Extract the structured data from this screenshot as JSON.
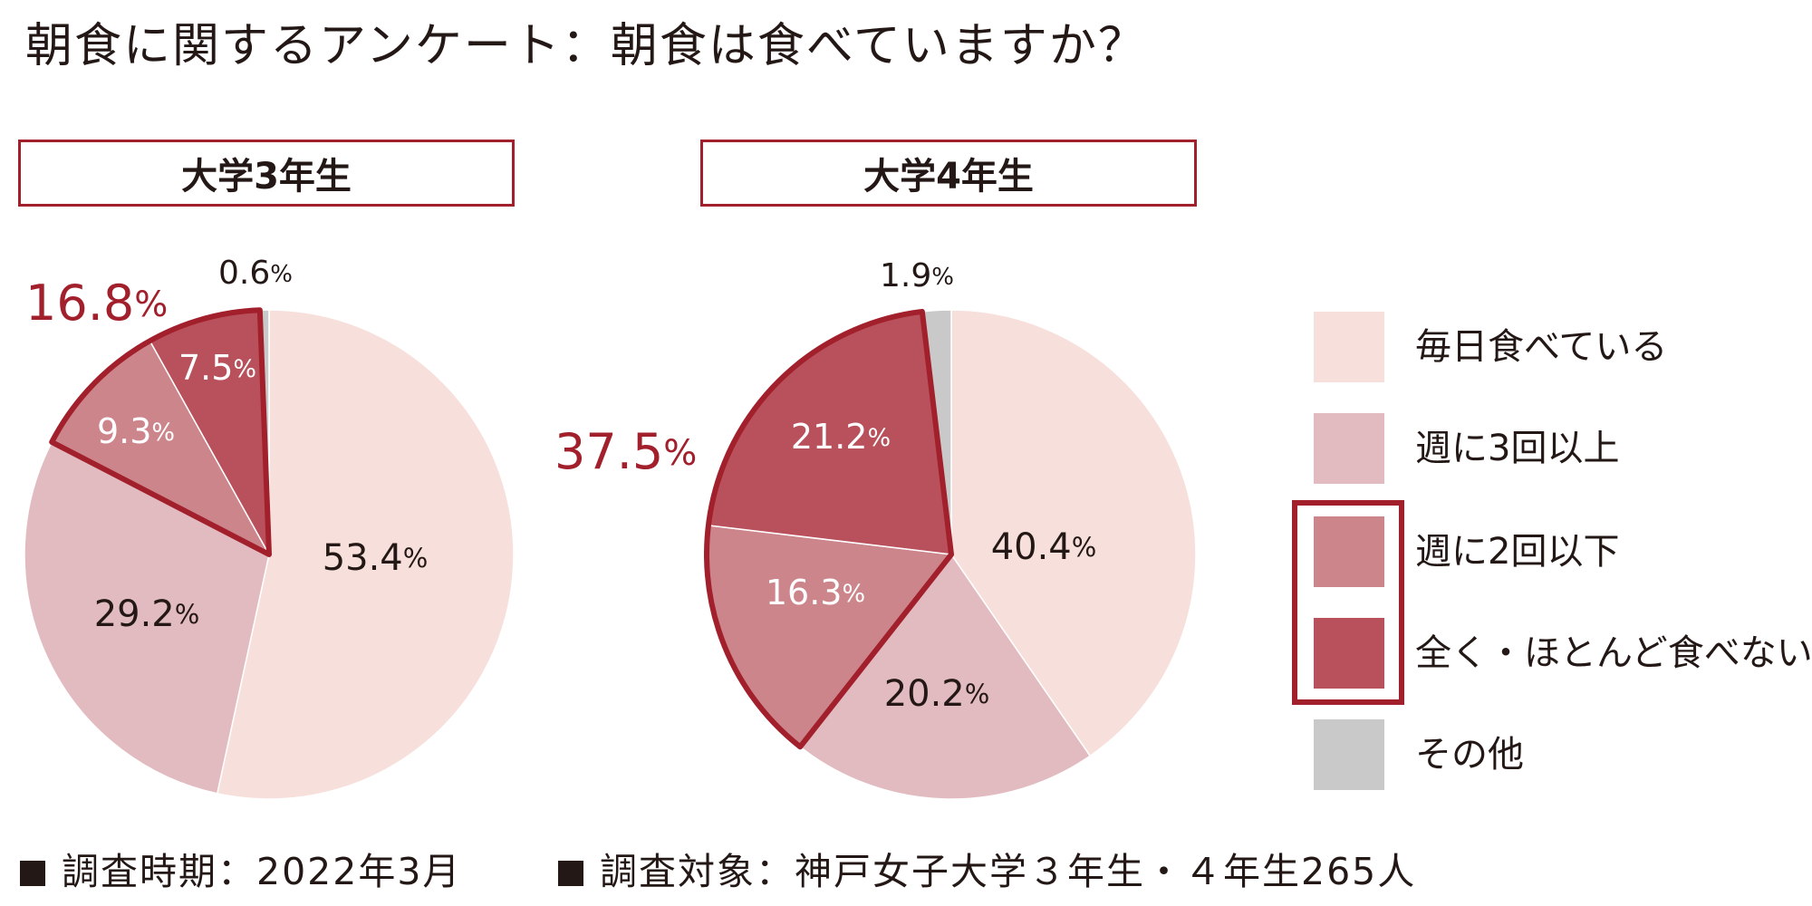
{
  "title": "朝食に関するアンケート：朝食は食べていますか？",
  "colors": {
    "daily": "#f7e0db",
    "three_plus": "#e2bbc0",
    "two_less": "#cd858c",
    "never": "#b8515b",
    "other": "#c9c9c9",
    "accent": "#a21f2c",
    "text": "#231815",
    "inner_label_light": "#ffffff"
  },
  "legend": [
    {
      "label": "毎日食べている",
      "color_key": "daily"
    },
    {
      "label": "週に3回以上",
      "color_key": "three_plus"
    },
    {
      "label": "週に2回以下",
      "color_key": "two_less"
    },
    {
      "label": "全く・ほとんど食べない",
      "color_key": "never"
    },
    {
      "label": "その他",
      "color_key": "other"
    }
  ],
  "chart_data": [
    {
      "type": "pie",
      "title": "大学3年生",
      "categories": [
        "毎日食べている",
        "週に3回以上",
        "週に2回以下",
        "全く・ほとんど食べない",
        "その他"
      ],
      "values": [
        53.4,
        29.2,
        9.3,
        7.5,
        0.6
      ],
      "value_labels": [
        "53.4%",
        "29.2%",
        "9.3%",
        "7.5%",
        "0.6%"
      ],
      "highlight": {
        "categories": [
          "週に2回以下",
          "全く・ほとんど食べない"
        ],
        "total_label": "16.8%"
      }
    },
    {
      "type": "pie",
      "title": "大学4年生",
      "categories": [
        "毎日食べている",
        "週に3回以上",
        "週に2回以下",
        "全く・ほとんど食べない",
        "その他"
      ],
      "values": [
        40.4,
        20.2,
        16.3,
        21.2,
        1.9
      ],
      "value_labels": [
        "40.4%",
        "20.2%",
        "16.3%",
        "21.2%",
        "1.9%"
      ],
      "highlight": {
        "categories": [
          "週に2回以下",
          "全く・ほとんど食べない"
        ],
        "total_label": "37.5%"
      }
    }
  ],
  "footer": {
    "period": "調査時期：2022年3月",
    "target": "調査対象：神戸女子大学３年生・４年生265人"
  }
}
